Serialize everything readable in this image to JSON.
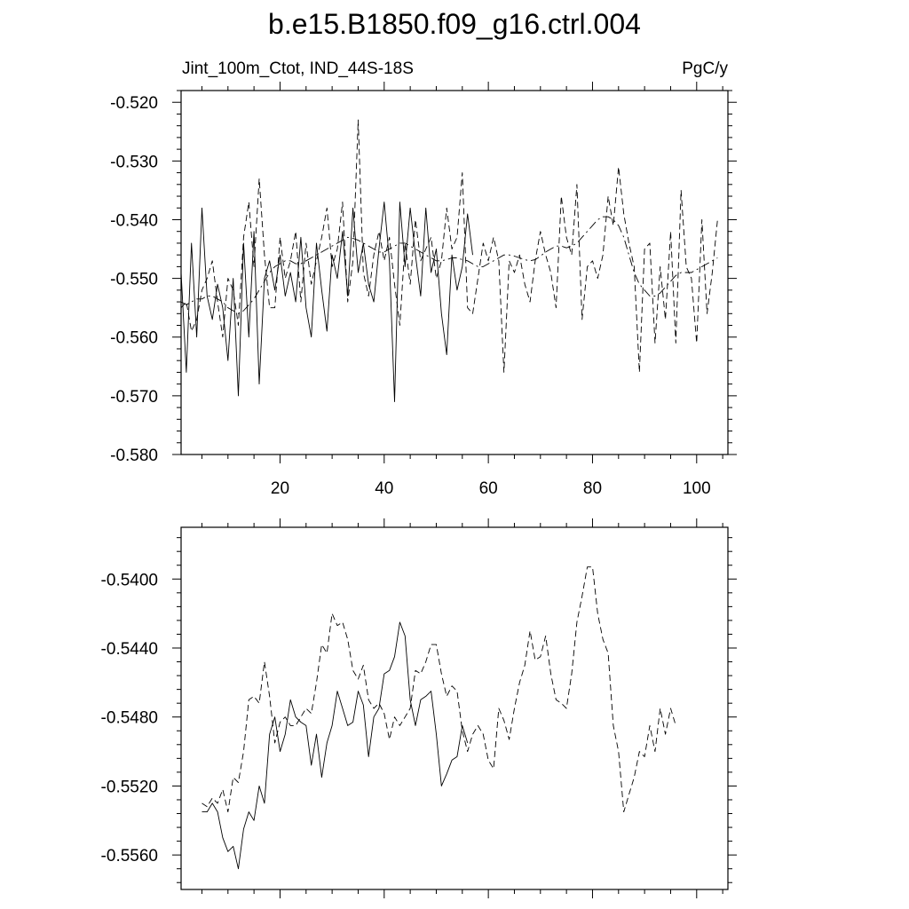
{
  "title": "b.e15.B1850.f09_g16.ctrl.004",
  "chart_data": [
    {
      "type": "line",
      "left_label": "Jint_100m_Ctot, IND_44S-18S",
      "right_label": "PgC/y",
      "xlim": [
        1,
        106
      ],
      "ylim": [
        -0.58,
        -0.518
      ],
      "x_ticks": [
        20,
        40,
        60,
        80,
        100
      ],
      "y_ticks": [
        -0.52,
        -0.53,
        -0.54,
        -0.55,
        -0.56,
        -0.57,
        -0.58
      ],
      "y_tick_labels": [
        "-0.520",
        "-0.530",
        "-0.540",
        "-0.550",
        "-0.560",
        "-0.570",
        "-0.580"
      ],
      "series": [
        {
          "style": "solid",
          "x_start": 1,
          "values": [
            -0.549,
            -0.566,
            -0.544,
            -0.56,
            -0.538,
            -0.553,
            -0.557,
            -0.551,
            -0.555,
            -0.564,
            -0.55,
            -0.57,
            -0.544,
            -0.56,
            -0.542,
            -0.568,
            -0.55,
            -0.547,
            -0.552,
            -0.546,
            -0.553,
            -0.549,
            -0.554,
            -0.543,
            -0.555,
            -0.56,
            -0.544,
            -0.552,
            -0.559,
            -0.546,
            -0.55,
            -0.542,
            -0.553,
            -0.538,
            -0.549,
            -0.544,
            -0.551,
            -0.554,
            -0.545,
            -0.537,
            -0.547,
            -0.571,
            -0.537,
            -0.548,
            -0.538,
            -0.546,
            -0.553,
            -0.538,
            -0.549,
            -0.545,
            -0.556,
            -0.563,
            -0.546,
            -0.552,
            -0.548,
            -0.539,
            -0.546
          ]
        },
        {
          "style": "dashed",
          "x_start": 1,
          "values": [
            -0.555,
            -0.554,
            -0.559,
            -0.557,
            -0.552,
            -0.55,
            -0.547,
            -0.554,
            -0.56,
            -0.55,
            -0.552,
            -0.558,
            -0.543,
            -0.537,
            -0.548,
            -0.533,
            -0.546,
            -0.555,
            -0.555,
            -0.543,
            -0.55,
            -0.547,
            -0.542,
            -0.554,
            -0.544,
            -0.551,
            -0.547,
            -0.543,
            -0.538,
            -0.548,
            -0.545,
            -0.537,
            -0.554,
            -0.547,
            -0.523,
            -0.549,
            -0.553,
            -0.546,
            -0.542,
            -0.547,
            -0.543,
            -0.551,
            -0.558,
            -0.544,
            -0.551,
            -0.54,
            -0.547,
            -0.545,
            -0.543,
            -0.55,
            -0.547,
            -0.538,
            -0.545,
            -0.543,
            -0.532,
            -0.555,
            -0.556,
            -0.55,
            -0.544,
            -0.547,
            -0.543,
            -0.547,
            -0.566,
            -0.547,
            -0.549,
            -0.546,
            -0.551,
            -0.554,
            -0.547,
            -0.542,
            -0.546,
            -0.549,
            -0.555,
            -0.536,
            -0.543,
            -0.546,
            -0.534,
            -0.557,
            -0.548,
            -0.547,
            -0.55,
            -0.546,
            -0.536,
            -0.541,
            -0.531,
            -0.539,
            -0.544,
            -0.548,
            -0.566,
            -0.545,
            -0.544,
            -0.561,
            -0.548,
            -0.557,
            -0.542,
            -0.561,
            -0.535,
            -0.548,
            -0.55,
            -0.561,
            -0.54,
            -0.556,
            -0.549,
            -0.54
          ]
        },
        {
          "style": "dash-dot",
          "x_start": 1,
          "values": [
            -0.554,
            -0.5545,
            -0.554,
            -0.5535,
            -0.5535,
            -0.553,
            -0.553,
            -0.5535,
            -0.554,
            -0.555,
            -0.5555,
            -0.556,
            -0.5555,
            -0.5545,
            -0.5535,
            -0.552,
            -0.5505,
            -0.549,
            -0.548,
            -0.5475,
            -0.547,
            -0.547,
            -0.5475,
            -0.5475,
            -0.547,
            -0.5465,
            -0.546,
            -0.5455,
            -0.545,
            -0.5445,
            -0.544,
            -0.5435,
            -0.543,
            -0.5432,
            -0.5435,
            -0.544,
            -0.5445,
            -0.545,
            -0.5455,
            -0.5455,
            -0.545,
            -0.5445,
            -0.544,
            -0.544,
            -0.5445,
            -0.545,
            -0.5455,
            -0.546,
            -0.5465,
            -0.547,
            -0.547,
            -0.5468,
            -0.5465,
            -0.5465,
            -0.5468,
            -0.547,
            -0.5475,
            -0.548,
            -0.548,
            -0.5475,
            -0.547,
            -0.5465,
            -0.546,
            -0.546,
            -0.5462,
            -0.5465,
            -0.5468,
            -0.547,
            -0.5468,
            -0.5462,
            -0.5455,
            -0.545,
            -0.5445,
            -0.5445,
            -0.5448,
            -0.5445,
            -0.544,
            -0.543,
            -0.542,
            -0.541,
            -0.54,
            -0.5395,
            -0.5395,
            -0.54,
            -0.541,
            -0.543,
            -0.546,
            -0.549,
            -0.551,
            -0.552,
            -0.553,
            -0.553,
            -0.5525,
            -0.5515,
            -0.5505,
            -0.5495,
            -0.549,
            -0.549,
            -0.549,
            -0.5485,
            -0.548,
            -0.5475,
            -0.547,
            -0.5465
          ]
        }
      ]
    },
    {
      "type": "line",
      "xlim": [
        1,
        106
      ],
      "ylim": [
        -0.558,
        -0.537
      ],
      "x_ticks": [
        20,
        40,
        60,
        80,
        100
      ],
      "y_ticks": [
        -0.54,
        -0.544,
        -0.548,
        -0.552,
        -0.556
      ],
      "y_tick_labels": [
        "-0.5400",
        "-0.5440",
        "-0.5480",
        "-0.5520",
        "-0.5560"
      ],
      "series": [
        {
          "style": "solid",
          "x_start": 5,
          "values": [
            -0.5535,
            -0.5535,
            -0.553,
            -0.5535,
            -0.555,
            -0.5558,
            -0.5555,
            -0.5568,
            -0.5545,
            -0.5535,
            -0.554,
            -0.552,
            -0.553,
            -0.549,
            -0.548,
            -0.55,
            -0.549,
            -0.547,
            -0.548,
            -0.5483,
            -0.5485,
            -0.5508,
            -0.549,
            -0.5515,
            -0.5495,
            -0.5485,
            -0.5465,
            -0.5475,
            -0.5485,
            -0.5483,
            -0.5465,
            -0.5473,
            -0.5503,
            -0.548,
            -0.5475,
            -0.5455,
            -0.5453,
            -0.5445,
            -0.5425,
            -0.5433,
            -0.547,
            -0.5485,
            -0.547,
            -0.5468,
            -0.5465,
            -0.549,
            -0.552,
            -0.5513,
            -0.5505,
            -0.5503,
            -0.5485,
            -0.5495
          ]
        },
        {
          "style": "dashed",
          "x_start": 5,
          "values": [
            -0.553,
            -0.5532,
            -0.5527,
            -0.553,
            -0.5522,
            -0.5535,
            -0.5515,
            -0.5518,
            -0.55,
            -0.547,
            -0.5468,
            -0.5472,
            -0.5448,
            -0.5468,
            -0.5495,
            -0.5483,
            -0.548,
            -0.5485,
            -0.5485,
            -0.548,
            -0.5475,
            -0.5478,
            -0.546,
            -0.5438,
            -0.5443,
            -0.542,
            -0.5427,
            -0.5425,
            -0.5435,
            -0.5453,
            -0.5458,
            -0.545,
            -0.547,
            -0.5475,
            -0.5472,
            -0.5478,
            -0.5493,
            -0.548,
            -0.5485,
            -0.548,
            -0.5475,
            -0.5453,
            -0.5455,
            -0.5448,
            -0.5438,
            -0.5438,
            -0.5455,
            -0.5468,
            -0.5462,
            -0.5465,
            -0.5488,
            -0.55,
            -0.549,
            -0.5485,
            -0.549,
            -0.5505,
            -0.551,
            -0.5475,
            -0.5482,
            -0.5493,
            -0.5475,
            -0.546,
            -0.545,
            -0.543,
            -0.5447,
            -0.5445,
            -0.5433,
            -0.5455,
            -0.547,
            -0.5472,
            -0.5475,
            -0.5455,
            -0.5425,
            -0.541,
            -0.5393,
            -0.5393,
            -0.542,
            -0.5435,
            -0.5443,
            -0.5485,
            -0.55,
            -0.5535,
            -0.5525,
            -0.5515,
            -0.55,
            -0.5503,
            -0.5485,
            -0.55,
            -0.5475,
            -0.549,
            -0.5475,
            -0.5485
          ]
        }
      ]
    }
  ]
}
